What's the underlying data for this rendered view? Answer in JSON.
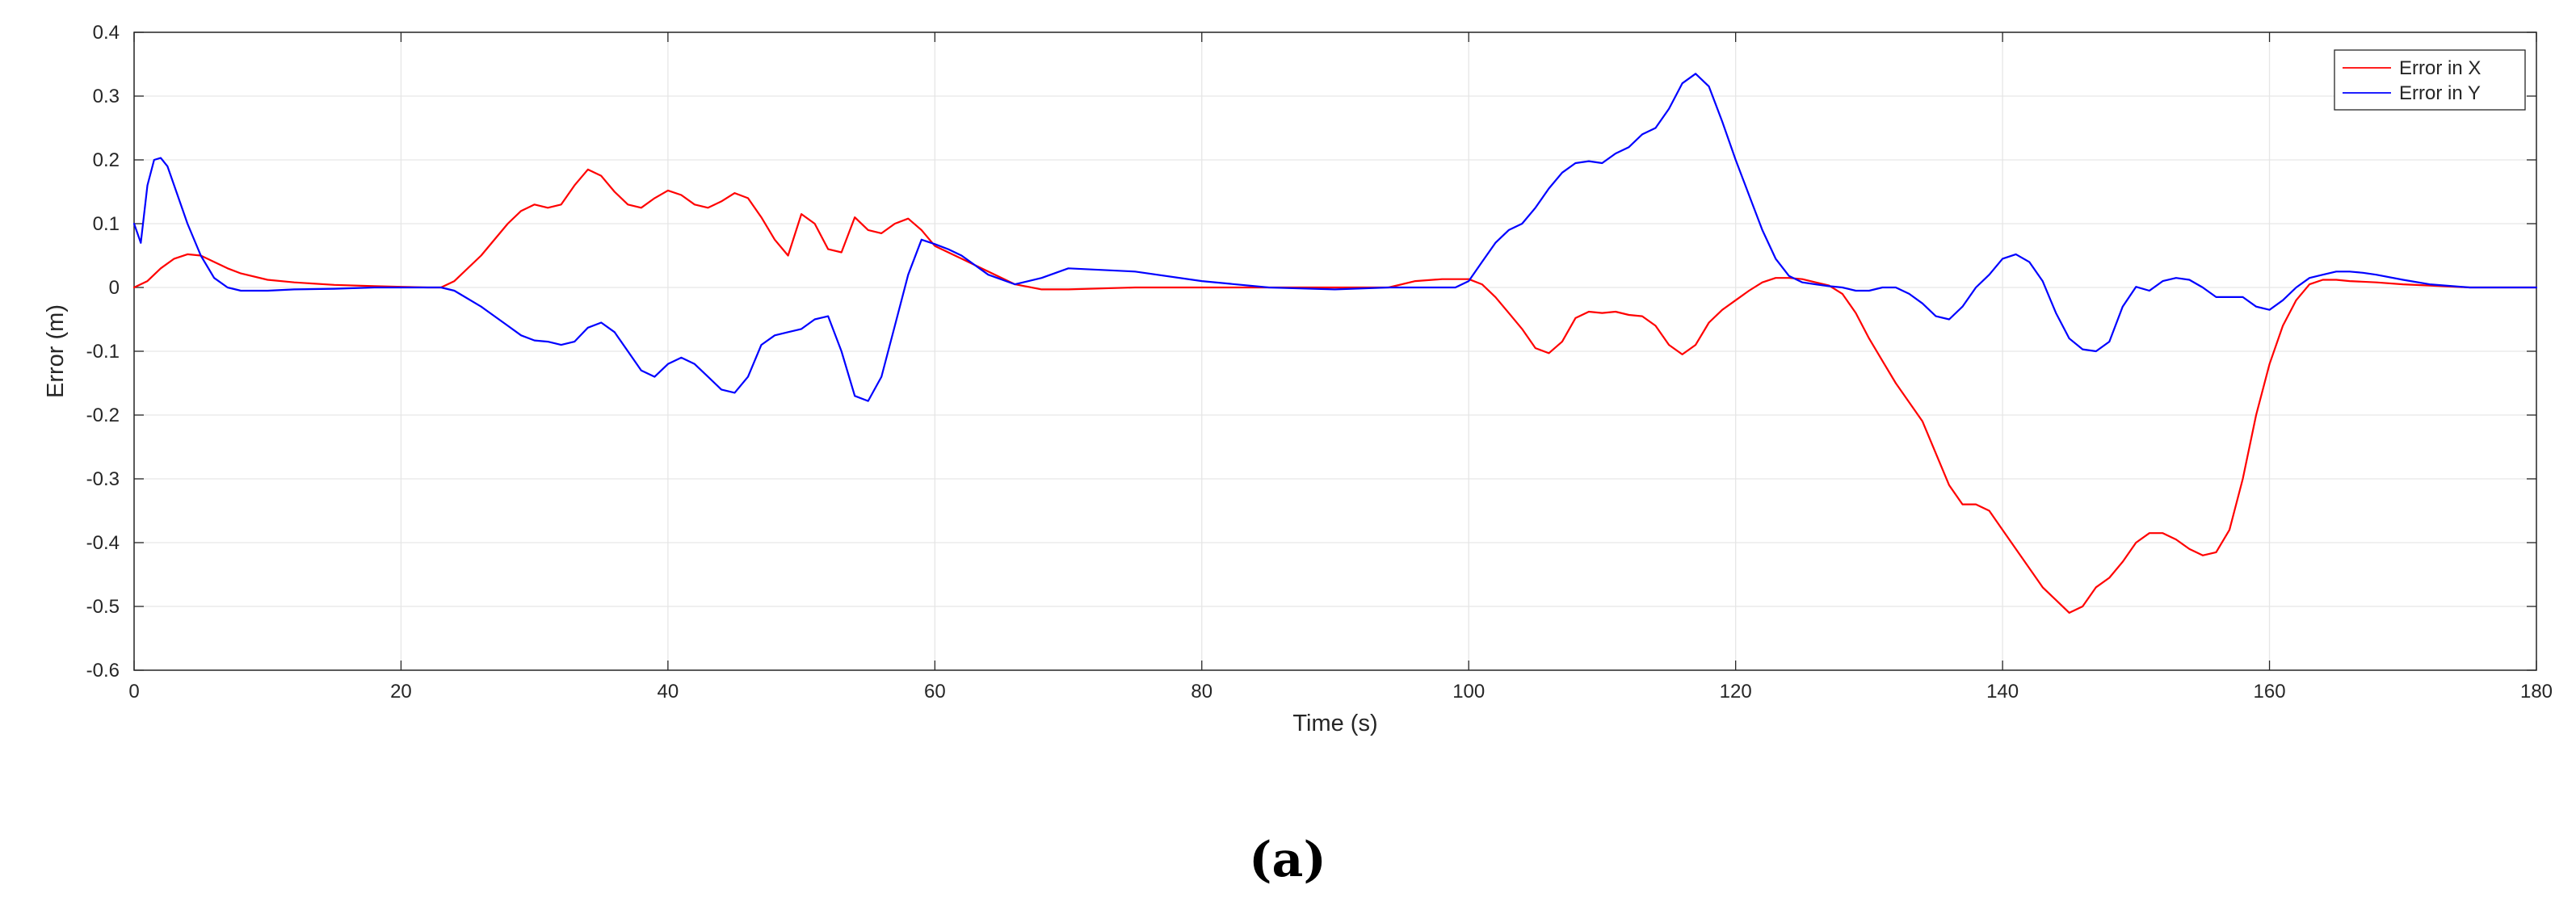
{
  "chart_data": {
    "type": "line",
    "title": "",
    "xlabel": "Time (s)",
    "ylabel": "Error (m)",
    "xlim": [
      0,
      180
    ],
    "ylim": [
      -0.6,
      0.4
    ],
    "xticks": [
      0,
      20,
      40,
      60,
      80,
      100,
      120,
      140,
      160,
      180
    ],
    "yticks": [
      -0.6,
      -0.5,
      -0.4,
      -0.3,
      -0.2,
      -0.1,
      0,
      0.1,
      0.2,
      0.3,
      0.4
    ],
    "xtick_labels": [
      "0",
      "20",
      "40",
      "60",
      "80",
      "100",
      "120",
      "140",
      "160",
      "180"
    ],
    "ytick_labels": [
      "-0.6",
      "-0.5",
      "-0.4",
      "-0.3",
      "-0.2",
      "-0.1",
      "0",
      "0.1",
      "0.2",
      "0.3",
      "0.4"
    ],
    "grid": true,
    "legend_position": "top-right",
    "series": [
      {
        "name": "Error in X",
        "color": "#ff0000",
        "x": [
          0,
          1,
          2,
          3,
          4,
          5,
          6,
          7,
          8,
          10,
          12,
          15,
          18,
          20,
          22,
          23,
          24,
          26,
          28,
          29,
          30,
          31,
          32,
          33,
          34,
          35,
          36,
          37,
          38,
          39,
          40,
          41,
          42,
          43,
          44,
          45,
          46,
          47,
          48,
          49,
          50,
          51,
          52,
          53,
          54,
          55,
          56,
          57,
          58,
          59,
          60,
          62,
          64,
          66,
          68,
          70,
          75,
          80,
          85,
          90,
          94,
          96,
          98,
          100,
          101,
          102,
          103,
          104,
          105,
          106,
          107,
          108,
          109,
          110,
          111,
          112,
          113,
          114,
          115,
          116,
          117,
          118,
          119,
          120,
          121,
          122,
          123,
          124,
          125,
          126,
          127,
          128,
          129,
          130,
          131,
          132,
          133,
          134,
          135,
          136,
          137,
          138,
          139,
          140,
          141,
          142,
          143,
          144,
          145,
          146,
          147,
          148,
          149,
          150,
          151,
          152,
          153,
          154,
          155,
          156,
          157,
          158,
          159,
          160,
          161,
          162,
          163,
          164,
          165,
          166,
          168,
          170,
          172,
          175,
          178,
          180
        ],
        "values": [
          0,
          0.01,
          0.03,
          0.045,
          0.052,
          0.05,
          0.04,
          0.03,
          0.022,
          0.012,
          0.008,
          0.004,
          0.002,
          0.001,
          0,
          0,
          0.01,
          0.05,
          0.1,
          0.12,
          0.13,
          0.125,
          0.13,
          0.16,
          0.185,
          0.175,
          0.15,
          0.13,
          0.125,
          0.14,
          0.152,
          0.145,
          0.13,
          0.125,
          0.135,
          0.148,
          0.14,
          0.11,
          0.075,
          0.05,
          0.115,
          0.1,
          0.06,
          0.055,
          0.11,
          0.09,
          0.085,
          0.1,
          0.108,
          0.09,
          0.065,
          0.045,
          0.025,
          0.005,
          -0.003,
          -0.003,
          0,
          0,
          0,
          0,
          0,
          0.01,
          0.013,
          0.013,
          0.005,
          -0.015,
          -0.04,
          -0.065,
          -0.095,
          -0.103,
          -0.085,
          -0.048,
          -0.038,
          -0.04,
          -0.038,
          -0.043,
          -0.045,
          -0.06,
          -0.09,
          -0.105,
          -0.09,
          -0.055,
          -0.035,
          -0.02,
          -0.005,
          0.008,
          0.015,
          0.015,
          0.013,
          0.008,
          0.003,
          -0.01,
          -0.04,
          -0.08,
          -0.115,
          -0.15,
          -0.18,
          -0.21,
          -0.26,
          -0.31,
          -0.34,
          -0.34,
          -0.35,
          -0.38,
          -0.41,
          -0.44,
          -0.47,
          -0.49,
          -0.51,
          -0.5,
          -0.47,
          -0.455,
          -0.43,
          -0.4,
          -0.385,
          -0.385,
          -0.395,
          -0.41,
          -0.42,
          -0.415,
          -0.38,
          -0.3,
          -0.2,
          -0.12,
          -0.06,
          -0.02,
          0.005,
          0.012,
          0.012,
          0.01,
          0.008,
          0.005,
          0.003,
          0,
          0,
          0
        ]
      },
      {
        "name": "Error in Y",
        "color": "#0000ff",
        "x": [
          0,
          0.5,
          1,
          1.5,
          2,
          2.5,
          3,
          4,
          5,
          6,
          7,
          8,
          10,
          12,
          15,
          18,
          20,
          22,
          23,
          24,
          26,
          28,
          29,
          30,
          31,
          32,
          33,
          34,
          35,
          36,
          37,
          38,
          39,
          40,
          41,
          42,
          43,
          44,
          45,
          46,
          47,
          48,
          49,
          50,
          51,
          52,
          53,
          54,
          55,
          56,
          57,
          58,
          59,
          60,
          61,
          62,
          64,
          66,
          68,
          70,
          75,
          80,
          85,
          90,
          94,
          95,
          96,
          97,
          98,
          99,
          100,
          101,
          102,
          103,
          104,
          105,
          106,
          107,
          108,
          109,
          110,
          111,
          112,
          113,
          114,
          115,
          116,
          117,
          118,
          119,
          120,
          121,
          122,
          123,
          124,
          125,
          126,
          127,
          128,
          129,
          130,
          131,
          132,
          133,
          134,
          135,
          136,
          137,
          138,
          139,
          140,
          141,
          142,
          143,
          144,
          145,
          146,
          147,
          148,
          149,
          150,
          151,
          152,
          153,
          154,
          155,
          156,
          157,
          158,
          159,
          160,
          161,
          162,
          163,
          164,
          165,
          166,
          167,
          168,
          170,
          172,
          175,
          178,
          180
        ],
        "values": [
          0.1,
          0.07,
          0.16,
          0.2,
          0.203,
          0.19,
          0.16,
          0.1,
          0.05,
          0.015,
          0,
          -0.005,
          -0.005,
          -0.003,
          -0.002,
          0,
          0,
          0,
          0,
          -0.005,
          -0.03,
          -0.06,
          -0.075,
          -0.083,
          -0.085,
          -0.09,
          -0.085,
          -0.063,
          -0.055,
          -0.07,
          -0.1,
          -0.13,
          -0.14,
          -0.12,
          -0.11,
          -0.12,
          -0.14,
          -0.16,
          -0.165,
          -0.14,
          -0.09,
          -0.075,
          -0.07,
          -0.065,
          -0.05,
          -0.045,
          -0.1,
          -0.17,
          -0.178,
          -0.14,
          -0.06,
          0.02,
          0.075,
          0.068,
          0.06,
          0.05,
          0.02,
          0.005,
          0.015,
          0.03,
          0.025,
          0.01,
          0,
          -0.003,
          0,
          0,
          0,
          0,
          0,
          0,
          0.01,
          0.04,
          0.07,
          0.09,
          0.1,
          0.125,
          0.155,
          0.18,
          0.195,
          0.198,
          0.195,
          0.21,
          0.22,
          0.24,
          0.25,
          0.28,
          0.32,
          0.335,
          0.315,
          0.26,
          0.2,
          0.145,
          0.09,
          0.045,
          0.018,
          0.008,
          0.005,
          0.002,
          0,
          -0.005,
          -0.005,
          0,
          0,
          -0.01,
          -0.025,
          -0.045,
          -0.05,
          -0.03,
          0,
          0.02,
          0.045,
          0.052,
          0.04,
          0.01,
          -0.04,
          -0.08,
          -0.097,
          -0.1,
          -0.085,
          -0.03,
          0.001,
          -0.005,
          0.01,
          0.015,
          0.012,
          0,
          -0.015,
          -0.015,
          -0.015,
          -0.03,
          -0.035,
          -0.02,
          0,
          0.015,
          0.02,
          0.025,
          0.025,
          0.023,
          0.02,
          0.012,
          0.005,
          0,
          0,
          0
        ]
      }
    ]
  },
  "caption": "(a)"
}
